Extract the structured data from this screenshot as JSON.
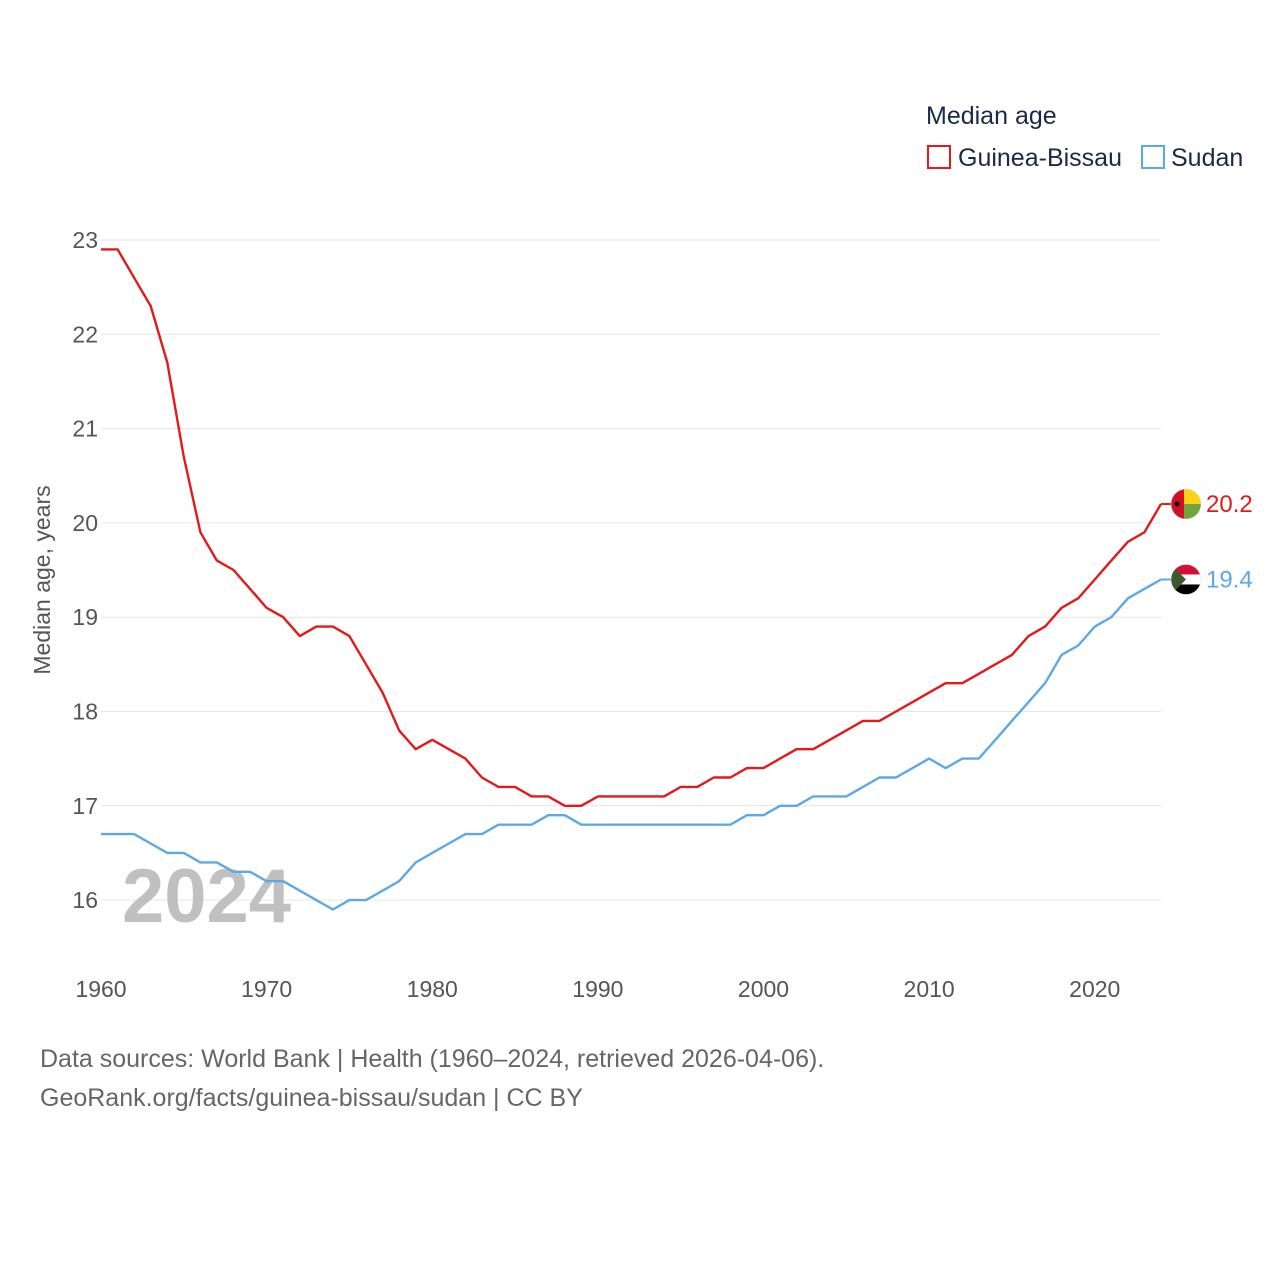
{
  "chart_data": {
    "type": "line",
    "title": "Median age",
    "ylabel": "Median age, years",
    "xlabel": "",
    "xlim": [
      1960,
      2024
    ],
    "ylim": [
      15.4,
      23
    ],
    "x_ticks": [
      1960,
      1970,
      1980,
      1990,
      2000,
      2010,
      2020
    ],
    "y_ticks": [
      16,
      17,
      18,
      19,
      20,
      21,
      22,
      23
    ],
    "grid": true,
    "legend_position": "top-right",
    "current_year_label": "2024",
    "x": [
      1960,
      1961,
      1962,
      1963,
      1964,
      1965,
      1966,
      1967,
      1968,
      1969,
      1970,
      1971,
      1972,
      1973,
      1974,
      1975,
      1976,
      1977,
      1978,
      1979,
      1980,
      1981,
      1982,
      1983,
      1984,
      1985,
      1986,
      1987,
      1988,
      1989,
      1990,
      1991,
      1992,
      1993,
      1994,
      1995,
      1996,
      1997,
      1998,
      1999,
      2000,
      2001,
      2002,
      2003,
      2004,
      2005,
      2006,
      2007,
      2008,
      2009,
      2010,
      2011,
      2012,
      2013,
      2014,
      2015,
      2016,
      2017,
      2018,
      2019,
      2020,
      2021,
      2022,
      2023,
      2024
    ],
    "series": [
      {
        "name": "Guinea-Bissau",
        "color": "#e31a1c",
        "end_label": "20.2",
        "flag_icon": "guinea-bissau-flag-icon",
        "values": [
          22.9,
          22.9,
          22.6,
          22.3,
          21.7,
          20.7,
          19.9,
          19.6,
          19.5,
          19.3,
          19.1,
          19.0,
          18.8,
          18.9,
          18.9,
          18.8,
          18.5,
          18.2,
          17.8,
          17.6,
          17.7,
          17.6,
          17.5,
          17.3,
          17.2,
          17.2,
          17.1,
          17.1,
          17.0,
          17.0,
          17.1,
          17.1,
          17.1,
          17.1,
          17.1,
          17.2,
          17.2,
          17.3,
          17.3,
          17.4,
          17.4,
          17.5,
          17.6,
          17.6,
          17.7,
          17.8,
          17.9,
          17.9,
          18.0,
          18.1,
          18.2,
          18.3,
          18.3,
          18.4,
          18.5,
          18.6,
          18.8,
          18.9,
          19.1,
          19.2,
          19.4,
          19.6,
          19.8,
          19.9,
          20.2
        ]
      },
      {
        "name": "Sudan",
        "color": "#5fa8e6",
        "end_label": "19.4",
        "flag_icon": "sudan-flag-icon",
        "values": [
          16.7,
          16.7,
          16.7,
          16.6,
          16.5,
          16.5,
          16.4,
          16.4,
          16.3,
          16.3,
          16.2,
          16.2,
          16.1,
          16.0,
          15.9,
          16.0,
          16.0,
          16.1,
          16.2,
          16.4,
          16.5,
          16.6,
          16.7,
          16.7,
          16.8,
          16.8,
          16.8,
          16.9,
          16.9,
          16.8,
          16.8,
          16.8,
          16.8,
          16.8,
          16.8,
          16.8,
          16.8,
          16.8,
          16.8,
          16.9,
          16.9,
          17.0,
          17.0,
          17.1,
          17.1,
          17.1,
          17.2,
          17.3,
          17.3,
          17.4,
          17.5,
          17.4,
          17.5,
          17.5,
          17.7,
          17.9,
          18.1,
          18.3,
          18.6,
          18.7,
          18.9,
          19.0,
          19.2,
          19.3,
          19.4
        ]
      }
    ]
  },
  "source": {
    "line1": "Data sources: World Bank | Health (1960–2024, retrieved 2026-04-06).",
    "line2": "GeoRank.org/facts/guinea-bissau/sudan | CC BY"
  }
}
